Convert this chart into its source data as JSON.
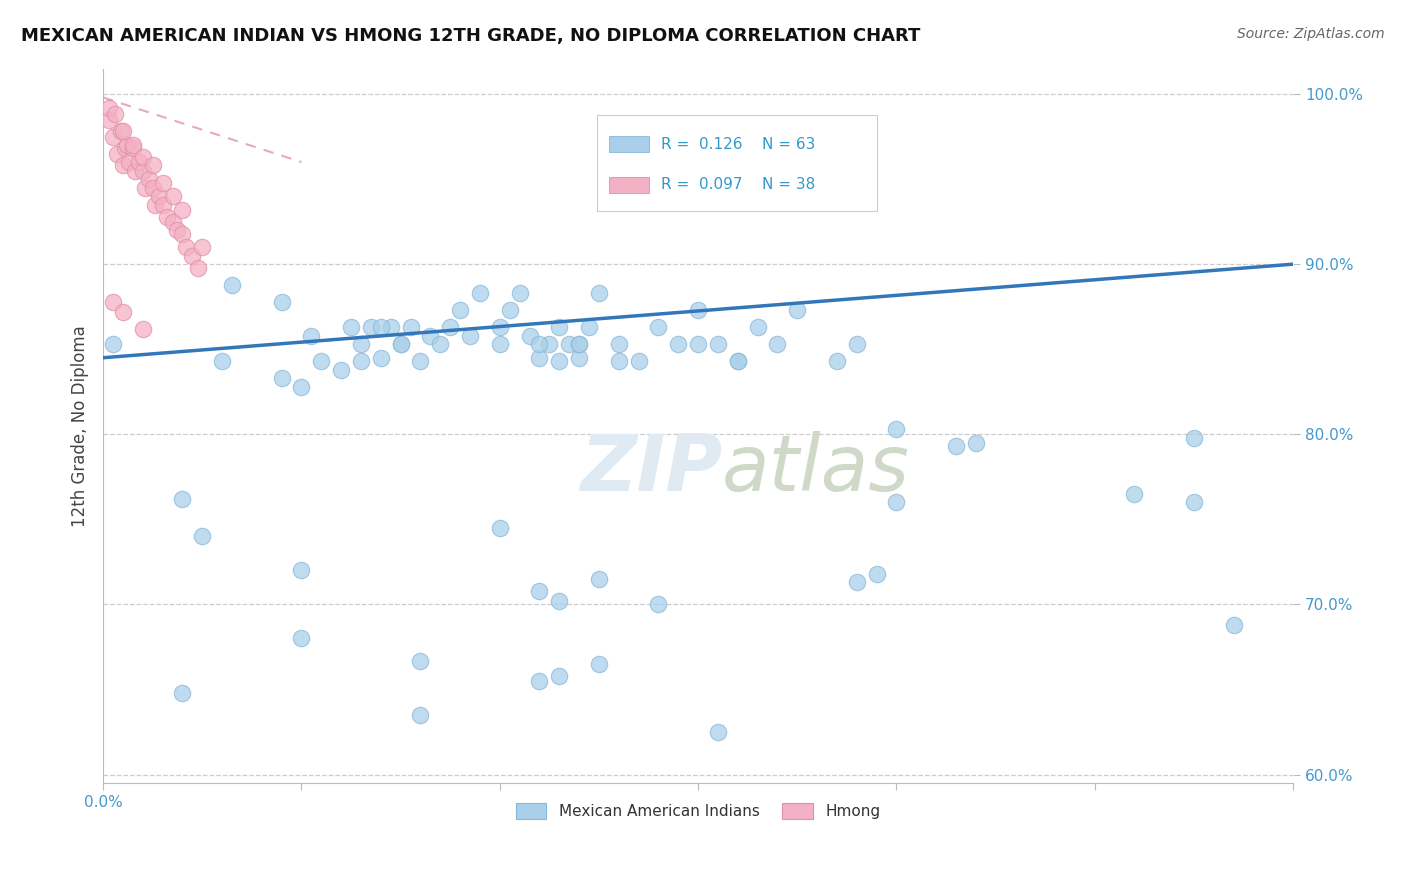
{
  "title": "MEXICAN AMERICAN INDIAN VS HMONG 12TH GRADE, NO DIPLOMA CORRELATION CHART",
  "source": "Source: ZipAtlas.com",
  "ylabel": "12th Grade, No Diploma",
  "watermark": "ZIPatlas",
  "xlim": [
    0.0,
    0.6
  ],
  "ylim": [
    0.595,
    1.015
  ],
  "yticks": [
    0.6,
    0.7,
    0.8,
    0.9,
    1.0
  ],
  "ytick_labels": [
    "60.0%",
    "70.0%",
    "80.0%",
    "90.0%",
    "100.0%"
  ],
  "grid_color": "#cccccc",
  "blue_color": "#aacfea",
  "blue_edge": "#88b8d8",
  "pink_color": "#f4b0c4",
  "pink_edge": "#e090a8",
  "line_color": "#3377bb",
  "pink_line_color": "#dd8899",
  "legend_blue_R": "0.126",
  "legend_blue_N": "63",
  "legend_pink_R": "0.097",
  "legend_pink_N": "38",
  "legend_label_blue": "Mexican American Indians",
  "legend_label_pink": "Hmong",
  "blue_x": [
    0.005,
    0.04,
    0.06,
    0.065,
    0.09,
    0.1,
    0.105,
    0.11,
    0.12,
    0.125,
    0.13,
    0.135,
    0.14,
    0.145,
    0.15,
    0.155,
    0.16,
    0.165,
    0.17,
    0.175,
    0.18,
    0.185,
    0.19,
    0.2,
    0.205,
    0.21,
    0.215,
    0.22,
    0.225,
    0.23,
    0.235,
    0.24,
    0.245,
    0.25,
    0.26,
    0.27,
    0.28,
    0.29,
    0.3,
    0.31,
    0.32,
    0.33,
    0.34,
    0.35,
    0.37,
    0.38,
    0.4,
    0.43,
    0.15,
    0.2,
    0.24,
    0.26,
    0.3,
    0.32,
    0.09,
    0.13,
    0.14,
    0.22,
    0.23,
    0.24,
    0.44,
    0.55,
    0.57
  ],
  "blue_y": [
    0.853,
    0.762,
    0.843,
    0.888,
    0.878,
    0.828,
    0.858,
    0.843,
    0.838,
    0.863,
    0.843,
    0.863,
    0.845,
    0.863,
    0.853,
    0.863,
    0.843,
    0.858,
    0.853,
    0.863,
    0.873,
    0.858,
    0.883,
    0.853,
    0.873,
    0.883,
    0.858,
    0.845,
    0.853,
    0.863,
    0.853,
    0.845,
    0.863,
    0.883,
    0.853,
    0.843,
    0.863,
    0.853,
    0.873,
    0.853,
    0.843,
    0.863,
    0.853,
    0.873,
    0.843,
    0.853,
    0.803,
    0.793,
    0.853,
    0.863,
    0.853,
    0.843,
    0.853,
    0.843,
    0.833,
    0.853,
    0.863,
    0.853,
    0.843,
    0.853,
    0.795,
    0.798,
    0.688
  ],
  "pink_x": [
    0.003,
    0.005,
    0.007,
    0.009,
    0.011,
    0.01,
    0.012,
    0.013,
    0.015,
    0.016,
    0.018,
    0.02,
    0.021,
    0.023,
    0.025,
    0.026,
    0.028,
    0.03,
    0.032,
    0.035,
    0.037,
    0.04,
    0.042,
    0.045,
    0.048,
    0.003,
    0.006,
    0.01,
    0.015,
    0.02,
    0.025,
    0.03,
    0.035,
    0.04,
    0.05,
    0.005,
    0.01,
    0.02
  ],
  "pink_y": [
    0.985,
    0.975,
    0.965,
    0.978,
    0.968,
    0.958,
    0.97,
    0.96,
    0.968,
    0.955,
    0.96,
    0.955,
    0.945,
    0.95,
    0.945,
    0.935,
    0.94,
    0.935,
    0.928,
    0.925,
    0.92,
    0.918,
    0.91,
    0.905,
    0.898,
    0.992,
    0.988,
    0.978,
    0.97,
    0.963,
    0.958,
    0.948,
    0.94,
    0.932,
    0.91,
    0.878,
    0.872,
    0.862
  ],
  "blue_trend_x": [
    0.0,
    0.6
  ],
  "blue_trend_y": [
    0.845,
    0.9
  ],
  "pink_trend_x": [
    0.0,
    0.1
  ],
  "pink_trend_y": [
    0.998,
    0.96
  ],
  "blue_outliers_x": [
    0.05,
    0.1,
    0.2,
    0.4,
    0.52,
    0.55
  ],
  "blue_outliers_y": [
    0.74,
    0.72,
    0.745,
    0.76,
    0.765,
    0.76
  ],
  "blue_low_x": [
    0.1,
    0.16,
    0.22,
    0.23,
    0.25,
    0.28,
    0.38,
    0.39
  ],
  "blue_low_y": [
    0.68,
    0.667,
    0.708,
    0.702,
    0.715,
    0.7,
    0.713,
    0.718
  ],
  "blue_very_low_x": [
    0.04,
    0.16,
    0.22,
    0.23,
    0.25,
    0.31
  ],
  "blue_very_low_y": [
    0.648,
    0.635,
    0.655,
    0.658,
    0.665,
    0.625
  ]
}
